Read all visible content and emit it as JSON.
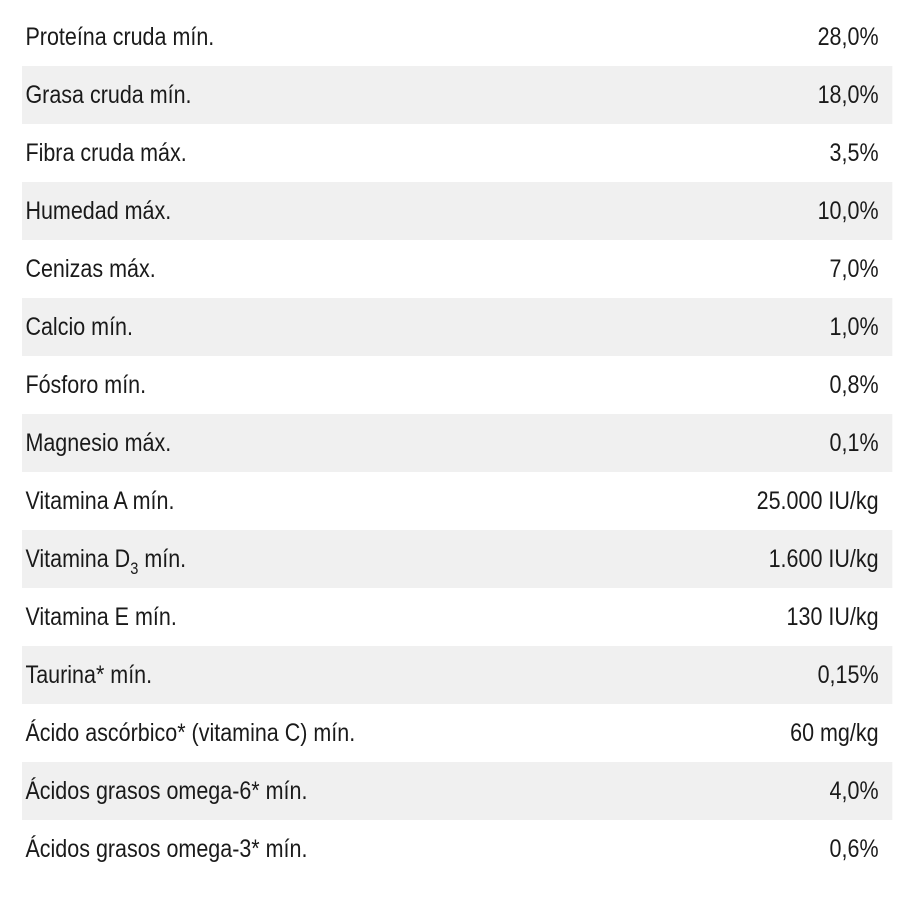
{
  "rows": [
    {
      "label": "Proteína cruda mín.",
      "value": "28,0%"
    },
    {
      "label": "Grasa cruda mín.",
      "value": "18,0%"
    },
    {
      "label": "Fibra cruda máx.",
      "value": "3,5%"
    },
    {
      "label": "Humedad máx.",
      "value": "10,0%"
    },
    {
      "label": "Cenizas máx.",
      "value": "7,0%"
    },
    {
      "label": "Calcio mín.",
      "value": "1,0%"
    },
    {
      "label": "Fósforo mín.",
      "value": "0,8%"
    },
    {
      "label": "Magnesio máx.",
      "value": "0,1%"
    },
    {
      "label": "Vitamina A mín.",
      "value": "25.000 IU/kg"
    },
    {
      "label_pre": "Vitamina D",
      "label_sub": "3",
      "label_post": " mín.",
      "value": "1.600 IU/kg"
    },
    {
      "label": "Vitamina E mín.",
      "value": "130 IU/kg"
    },
    {
      "label": "Taurina* mín.",
      "value": "0,15%"
    },
    {
      "label": "Ácido ascórbico* (vitamina C) mín.",
      "value": "60 mg/kg"
    },
    {
      "label": "Ácidos grasos omega-6* mín.",
      "value": "4,0%"
    },
    {
      "label": "Ácidos grasos omega-3* mín.",
      "value": "0,6%"
    }
  ]
}
